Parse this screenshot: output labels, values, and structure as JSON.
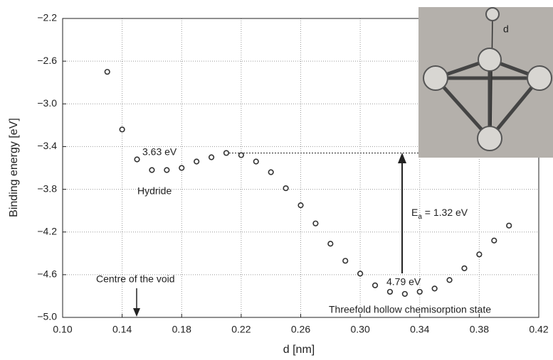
{
  "chart_data": {
    "type": "scatter",
    "x_label": "d [nm]",
    "y_label": "Binding energy [eV]",
    "xlim": [
      0.1,
      0.42
    ],
    "ylim": [
      -5.0,
      -2.2
    ],
    "xticks": [
      {
        "value": 0.1,
        "label": "0.10"
      },
      0.14,
      0.18,
      0.22,
      0.26,
      {
        "value": 0.3,
        "label": "0.30"
      },
      0.34,
      0.38,
      0.42
    ],
    "yticks": [
      {
        "value": -5.0,
        "label": "−5.0"
      },
      {
        "value": -4.6,
        "label": "−4.6"
      },
      {
        "value": -4.2,
        "label": "−4.2"
      },
      {
        "value": -3.8,
        "label": "−3.8"
      },
      {
        "value": -3.4,
        "label": "−3.4"
      },
      {
        "value": -3.0,
        "label": "−3.0"
      },
      {
        "value": -2.6,
        "label": "−2.6"
      },
      {
        "value": -2.2,
        "label": "−2.2"
      }
    ],
    "grid": true,
    "color": "#333333",
    "x": [
      0.13,
      0.14,
      0.15,
      0.16,
      0.17,
      0.18,
      0.19,
      0.2,
      0.21,
      0.22,
      0.23,
      0.24,
      0.25,
      0.26,
      0.27,
      0.28,
      0.29,
      0.3,
      0.31,
      0.32,
      0.33,
      0.34,
      0.35,
      0.36,
      0.37,
      0.38,
      0.39,
      0.4
    ],
    "values": [
      -2.7,
      -3.24,
      -3.52,
      -3.62,
      -3.62,
      -3.6,
      -3.54,
      -3.5,
      -3.46,
      -3.48,
      -3.54,
      -3.64,
      -3.79,
      -3.95,
      -4.12,
      -4.31,
      -4.47,
      -4.59,
      -4.7,
      -4.76,
      -4.78,
      -4.76,
      -4.73,
      -4.65,
      -4.54,
      -4.41,
      -4.28,
      -4.14
    ],
    "annotations": {
      "hydride_energy": "3.63 eV",
      "hydride": "Hydride",
      "void": "Centre of the void",
      "chem_energy": "4.79 eV",
      "chem": "Threefold hollow chemisorption state",
      "ea_main": "E",
      "ea_sub": "a",
      "ea_rest": " = 1.32 eV",
      "inset_d": "d"
    }
  }
}
